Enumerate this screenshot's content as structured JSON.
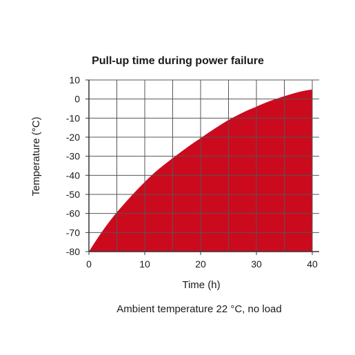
{
  "chart_data": {
    "type": "area",
    "title": "Pull-up time during power failure",
    "xlabel": "Time (h)",
    "ylabel": "Temperature (°C)",
    "note": "Ambient temperature 22 °C, no load",
    "xlim": [
      0,
      40
    ],
    "ylim": [
      -80,
      10
    ],
    "x_ticks": [
      0,
      10,
      20,
      30,
      40
    ],
    "x_ticklabels": [
      "0",
      "10",
      "20",
      "30",
      "40"
    ],
    "y_ticks": [
      10,
      0,
      -10,
      -20,
      -30,
      -40,
      -50,
      -60,
      -70,
      -80
    ],
    "y_ticklabels": [
      "10",
      "0",
      "-10",
      "-20",
      "-30",
      "-40",
      "-50",
      "-60",
      "-70",
      "-80"
    ],
    "grid": true,
    "fill_color": "#cc0a1e",
    "grid_color": "#555555",
    "x": [
      0,
      2,
      4,
      6,
      8,
      10,
      12,
      15,
      18,
      20,
      22,
      25,
      28,
      30,
      32,
      35,
      38,
      40
    ],
    "y": [
      -80,
      -71,
      -63,
      -56,
      -49.5,
      -43.5,
      -38,
      -31,
      -24.5,
      -20.5,
      -16.5,
      -11,
      -6.5,
      -4,
      -1.5,
      1.5,
      4,
      5
    ]
  }
}
